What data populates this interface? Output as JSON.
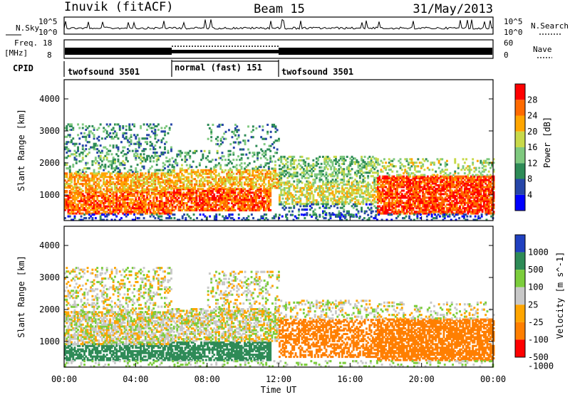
{
  "header": {
    "station": "Inuvik (fitACF)",
    "beam": "Beam 15",
    "date": "31/May/2013"
  },
  "side_labels": {
    "nsky": "N.Sky",
    "nsearch": "N.Search",
    "freq_line1": "Freq.",
    "freq_line2": "[MHz]",
    "nave": "Nave",
    "cpid": "CPID"
  },
  "noise_panel": {
    "tick_top": "10^5",
    "tick_bottom": "10^0"
  },
  "freq_panel": {
    "left_ticks": [
      "18",
      "8"
    ],
    "right_ticks": [
      "60",
      "0"
    ]
  },
  "cpid_segments": [
    {
      "label": "twofsound 3501",
      "start": 0,
      "end": 6
    },
    {
      "label": "normal (fast) 151",
      "start": 6,
      "end": 12
    },
    {
      "label": "twofsound 3501",
      "start": 12,
      "end": 24
    }
  ],
  "chart_data": [
    {
      "type": "heatmap",
      "name": "power",
      "ylabel": "Slant Range [km]",
      "ylim": [
        200,
        4600
      ],
      "y_ticks": [
        "1000",
        "2000",
        "3000",
        "4000"
      ],
      "colorbar_label": "Power [dB]",
      "colorbar_ticks": [
        "4",
        "8",
        "12",
        "16",
        "20",
        "24",
        "28"
      ],
      "colorbar_range": [
        0,
        32
      ],
      "colors": [
        "#0000ff",
        "#2646a8",
        "#2e8b57",
        "#7fc97f",
        "#c8d94a",
        "#ffa500",
        "#ff6a00",
        "#ff0000"
      ],
      "xlim": [
        0,
        24
      ]
    },
    {
      "type": "heatmap",
      "name": "velocity",
      "ylabel": "Slant Range [km]",
      "ylim": [
        200,
        4600
      ],
      "y_ticks": [
        "1000",
        "2000",
        "3000",
        "4000"
      ],
      "colorbar_label": "Velocity [m s^-1]",
      "colorbar_ticks": [
        "1000",
        "500",
        "100",
        "25",
        "-25",
        "-100",
        "-500",
        "-1000"
      ],
      "colors": [
        "#2040c0",
        "#2e8b57",
        "#7ccd3c",
        "#c8c8c8",
        "#ffa500",
        "#ff7f00",
        "#ff0000"
      ],
      "xlim": [
        0,
        24
      ]
    }
  ],
  "x_axis": {
    "ticks": [
      "00:00",
      "04:00",
      "08:00",
      "12:00",
      "16:00",
      "20:00",
      "00:00"
    ],
    "label": "Time UT"
  },
  "scatter_regions": {
    "power": [
      {
        "t0": 0.0,
        "t1": 6.0,
        "r0": 400,
        "r1": 1100,
        "v": 26,
        "d": 0.75
      },
      {
        "t0": 0.0,
        "t1": 6.0,
        "r0": 1100,
        "r1": 1700,
        "v": 22,
        "d": 0.7
      },
      {
        "t0": 0.0,
        "t1": 6.0,
        "r0": 1700,
        "r1": 2300,
        "v": 12,
        "d": 0.25
      },
      {
        "t0": 0.0,
        "t1": 6.0,
        "r0": 2300,
        "r1": 3200,
        "v": 10,
        "d": 0.25
      },
      {
        "t0": 6.0,
        "t1": 11.5,
        "r0": 500,
        "r1": 1200,
        "v": 27,
        "d": 0.75
      },
      {
        "t0": 6.0,
        "t1": 12.0,
        "r0": 1200,
        "r1": 1800,
        "v": 21,
        "d": 0.6
      },
      {
        "t0": 6.0,
        "t1": 12.0,
        "r0": 1800,
        "r1": 2400,
        "v": 12,
        "d": 0.2
      },
      {
        "t0": 8.0,
        "t1": 12.0,
        "r0": 2400,
        "r1": 3200,
        "v": 9,
        "d": 0.15
      },
      {
        "t0": 12.0,
        "t1": 17.5,
        "r0": 700,
        "r1": 1400,
        "v": 18,
        "d": 0.55
      },
      {
        "t0": 12.0,
        "t1": 17.5,
        "r0": 1400,
        "r1": 2200,
        "v": 14,
        "d": 0.45
      },
      {
        "t0": 12.0,
        "t1": 17.5,
        "r0": 300,
        "r1": 700,
        "v": 8,
        "d": 0.3
      },
      {
        "t0": 17.5,
        "t1": 24.0,
        "r0": 400,
        "r1": 1600,
        "v": 28,
        "d": 0.8
      },
      {
        "t0": 17.5,
        "t1": 24.0,
        "r0": 1600,
        "r1": 2100,
        "v": 16,
        "d": 0.25
      },
      {
        "t0": 0.0,
        "t1": 24.0,
        "r0": 200,
        "r1": 400,
        "v": 6,
        "d": 0.25
      }
    ],
    "velocity": [
      {
        "t0": 0.0,
        "t1": 6.0,
        "r0": 400,
        "r1": 900,
        "v": 200,
        "d": 0.65
      },
      {
        "t0": 0.0,
        "t1": 6.0,
        "r0": 900,
        "r1": 1900,
        "v": 0,
        "d": 0.7
      },
      {
        "t0": 0.0,
        "t1": 6.0,
        "r0": 1900,
        "r1": 3300,
        "v": 0,
        "d": 0.3
      },
      {
        "t0": 6.0,
        "t1": 11.5,
        "r0": 400,
        "r1": 1000,
        "v": 250,
        "d": 0.7
      },
      {
        "t0": 6.0,
        "t1": 12.0,
        "r0": 1000,
        "r1": 2000,
        "v": 0,
        "d": 0.6
      },
      {
        "t0": 8.0,
        "t1": 12.0,
        "r0": 2000,
        "r1": 3200,
        "v": 0,
        "d": 0.25
      },
      {
        "t0": 12.0,
        "t1": 17.5,
        "r0": 500,
        "r1": 1700,
        "v": -200,
        "d": 0.55
      },
      {
        "t0": 12.0,
        "t1": 17.5,
        "r0": 1700,
        "r1": 2300,
        "v": 0,
        "d": 0.3
      },
      {
        "t0": 17.5,
        "t1": 24.0,
        "r0": 400,
        "r1": 1700,
        "v": -250,
        "d": 0.75
      },
      {
        "t0": 17.5,
        "t1": 24.0,
        "r0": 1700,
        "r1": 2200,
        "v": 0,
        "d": 0.2
      },
      {
        "t0": 0.0,
        "t1": 24.0,
        "r0": 200,
        "r1": 400,
        "v": 40,
        "d": 0.2
      }
    ]
  }
}
